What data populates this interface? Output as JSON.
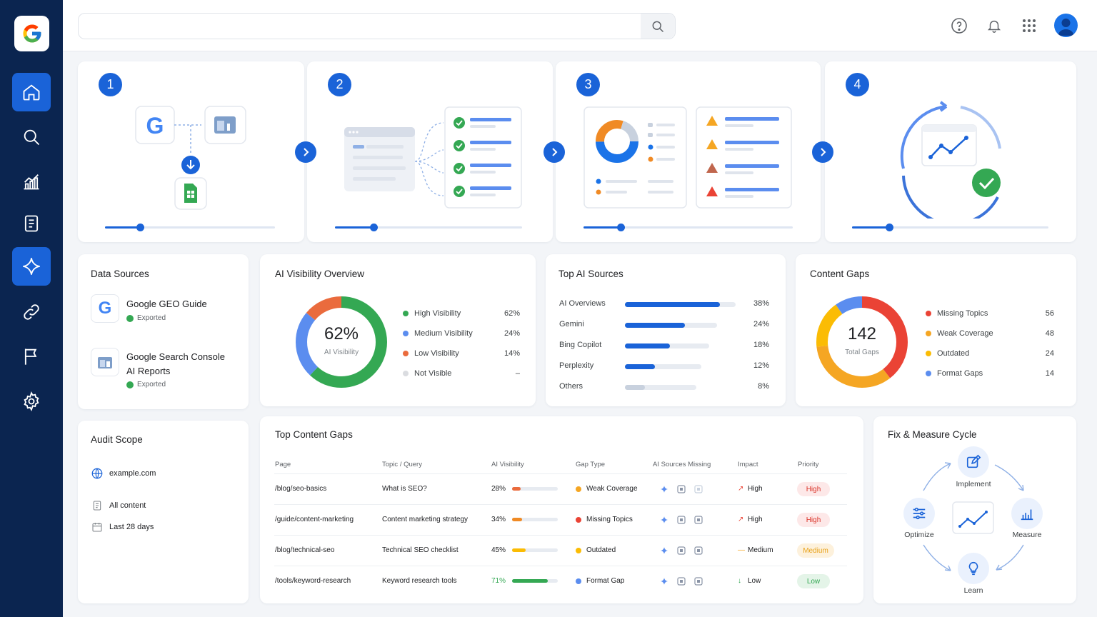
{
  "search": {
    "placeholder": ""
  },
  "steps": [
    "1",
    "2",
    "3",
    "4"
  ],
  "data_sources": {
    "title": "Data Sources",
    "items": [
      {
        "name": "Google GEO Guide",
        "status": "Exported"
      },
      {
        "name_line1": "Google Search Console",
        "name_line2": "AI Reports",
        "status": "Exported"
      }
    ]
  },
  "ai_visibility": {
    "title": "AI Visibility Overview",
    "center_value": "62%",
    "center_label": "AI Visibility",
    "legend": [
      {
        "label": "High Visibility",
        "value": "62%",
        "color": "#34a853",
        "pct": 62
      },
      {
        "label": "Medium Visibility",
        "value": "24%",
        "color": "#5b8def",
        "pct": 24
      },
      {
        "label": "Low Visibility",
        "value": "14%",
        "color": "#ea6b3d",
        "pct": 14
      },
      {
        "label": "Not Visible",
        "value": "–",
        "color": "#dadce0",
        "pct": 0
      }
    ]
  },
  "top_ai_sources": {
    "title": "Top AI Sources",
    "items": [
      {
        "label": "AI Overviews",
        "value": "38%",
        "pct": 38
      },
      {
        "label": "Gemini",
        "value": "24%",
        "pct": 24
      },
      {
        "label": "Bing Copilot",
        "value": "18%",
        "pct": 18
      },
      {
        "label": "Perplexity",
        "value": "12%",
        "pct": 12
      },
      {
        "label": "Others",
        "value": "8%",
        "pct": 8
      }
    ]
  },
  "content_gaps": {
    "title": "Content Gaps",
    "center_value": "142",
    "center_label": "Total Gaps",
    "legend": [
      {
        "label": "Missing Topics",
        "value": "56",
        "color": "#ea4335",
        "n": 56
      },
      {
        "label": "Weak Coverage",
        "value": "48",
        "color": "#f5a623",
        "n": 48
      },
      {
        "label": "Outdated",
        "value": "24",
        "color": "#fbbc04",
        "n": 24
      },
      {
        "label": "Format Gaps",
        "value": "14",
        "color": "#5b8def",
        "n": 14
      }
    ]
  },
  "audit_scope": {
    "title": "Audit Scope",
    "domain": "example.com",
    "content": "All content",
    "period": "Last 28 days"
  },
  "top_content_gaps": {
    "title": "Top Content Gaps",
    "headers": [
      "Page",
      "Topic / Query",
      "AI Visibility",
      "Gap Type",
      "AI Sources Missing",
      "Impact",
      "Priority"
    ],
    "rows": [
      {
        "page": "/blog/seo-basics",
        "topic": "What is SEO?",
        "visibility": "28%",
        "vis_pct": 28,
        "vis_color": "#ea6b3d",
        "gap_type": "Weak Coverage",
        "gap_color": "#f5a623",
        "impact": "High",
        "impact_arrow": "↗",
        "impact_color": "#ea4335",
        "priority": "High"
      },
      {
        "page": "/guide/content-marketing",
        "topic": "Content marketing strategy",
        "visibility": "34%",
        "vis_pct": 34,
        "vis_color": "#f08a24",
        "gap_type": "Missing Topics",
        "gap_color": "#ea4335",
        "impact": "High",
        "impact_arrow": "↗",
        "impact_color": "#ea4335",
        "priority": "High"
      },
      {
        "page": "/blog/technical-seo",
        "topic": "Technical SEO checklist",
        "visibility": "45%",
        "vis_pct": 45,
        "vis_color": "#fbbc04",
        "gap_type": "Outdated",
        "gap_color": "#fbbc04",
        "impact": "Medium",
        "impact_arrow": "—",
        "impact_color": "#f5a623",
        "priority": "Medium"
      },
      {
        "page": "/tools/keyword-research",
        "topic": "Keyword research tools",
        "visibility": "71%",
        "vis_pct": 71,
        "vis_color": "#34a853",
        "gap_type": "Format Gap",
        "gap_color": "#5b8def",
        "impact": "Low",
        "impact_arrow": "↓",
        "impact_color": "#34a853",
        "priority": "Low"
      }
    ]
  },
  "fix_cycle": {
    "title": "Fix & Measure Cycle",
    "implement": "Implement",
    "optimize": "Optimize",
    "measure": "Measure",
    "learn": "Learn"
  },
  "colors": {
    "sidebar": "#0b2550",
    "accent": "#1a63d8"
  }
}
